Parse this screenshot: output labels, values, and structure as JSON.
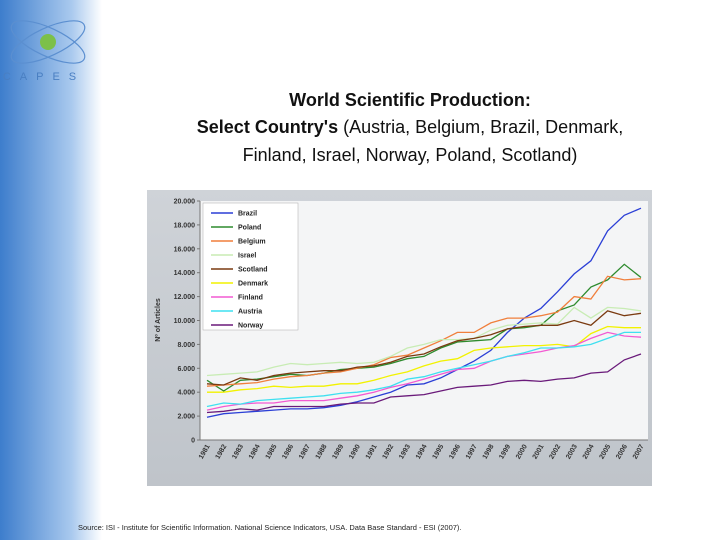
{
  "logo": "CAPES",
  "source": "Source: ISI - Institute for Scientific Information. National Science Indicators, USA. Data Base Standard - ESI (2007).",
  "chart_data": {
    "type": "line",
    "title": [
      "World Scientific Production:",
      "Select Country's",
      "(Austria, Belgium, Brazil, Denmark,",
      "Finland, Israel, Norway, Poland, Scotland)"
    ],
    "y_label": "Nº of Articles",
    "categories": [
      "1981",
      "1982",
      "1983",
      "1984",
      "1985",
      "1986",
      "1987",
      "1988",
      "1989",
      "1990",
      "1991",
      "1992",
      "1993",
      "1994",
      "1995",
      "1996",
      "1997",
      "1998",
      "1999",
      "2000",
      "2001",
      "2002",
      "2003",
      "2004",
      "2005",
      "2006",
      "2007"
    ],
    "ylim": [
      0,
      20000
    ],
    "yticks": [
      0,
      {
        "value": 2000,
        "label": "2.000"
      },
      {
        "value": 4000,
        "label": "4.000"
      },
      {
        "value": 6000,
        "label": "6.000"
      },
      {
        "value": 8000,
        "label": "8.000"
      },
      {
        "value": 10000,
        "label": "10.000"
      },
      {
        "value": 12000,
        "label": "12.000"
      },
      {
        "value": 14000,
        "label": "14.000"
      },
      {
        "value": 16000,
        "label": "16.000"
      },
      {
        "value": 18000,
        "label": "18.000"
      },
      {
        "value": 20000,
        "label": "20.000"
      }
    ],
    "grid": false,
    "legend": "upper left",
    "series": [
      {
        "name": "Brazil",
        "color": "#2b3fd6",
        "values": [
          1900,
          2200,
          2300,
          2400,
          2500,
          2600,
          2600,
          2700,
          2900,
          3200,
          3600,
          4000,
          4600,
          4700,
          5200,
          5900,
          6600,
          7500,
          9000,
          10200,
          11000,
          12400,
          13900,
          15000,
          17500,
          18800,
          19400
        ]
      },
      {
        "name": "Poland",
        "color": "#2e8b2e",
        "values": [
          5000,
          4100,
          5000,
          5100,
          5300,
          5500,
          5400,
          5600,
          5900,
          6000,
          6100,
          6400,
          6800,
          7000,
          7700,
          8200,
          8300,
          8400,
          9300,
          9400,
          9600,
          10800,
          11300,
          12800,
          13400,
          14700,
          13600
        ]
      },
      {
        "name": "Belgium",
        "color": "#f07f3c",
        "values": [
          4500,
          4600,
          4700,
          4800,
          5100,
          5300,
          5400,
          5600,
          5700,
          6000,
          6300,
          6900,
          7100,
          7700,
          8300,
          9000,
          9000,
          9800,
          10200,
          10200,
          10400,
          10700,
          12000,
          11800,
          13700,
          13400,
          13500
        ]
      },
      {
        "name": "Israel",
        "color": "#c8ecb4",
        "values": [
          5400,
          5500,
          5600,
          5700,
          6100,
          6400,
          6300,
          6400,
          6500,
          6400,
          6500,
          7000,
          7700,
          8000,
          8400,
          8400,
          8500,
          9200,
          9600,
          9700,
          9800,
          9700,
          11100,
          10200,
          11100,
          11000,
          10800
        ]
      },
      {
        "name": "Scotland",
        "color": "#7a3a10",
        "values": [
          4700,
          4600,
          5200,
          5000,
          5400,
          5600,
          5700,
          5800,
          5800,
          6100,
          6200,
          6500,
          7000,
          7200,
          7800,
          8300,
          8500,
          8800,
          9300,
          9500,
          9600,
          9600,
          10000,
          9600,
          10800,
          10400,
          10600
        ]
      },
      {
        "name": "Denmark",
        "color": "#f2f200",
        "values": [
          4000,
          4000,
          4200,
          4300,
          4500,
          4400,
          4500,
          4500,
          4700,
          4700,
          5000,
          5400,
          5700,
          6200,
          6600,
          6800,
          7500,
          7700,
          7800,
          7900,
          7900,
          8000,
          7800,
          8900,
          9500,
          9400,
          9400
        ]
      },
      {
        "name": "Finland",
        "color": "#f25ad2",
        "values": [
          2500,
          2800,
          3000,
          3100,
          3100,
          3300,
          3300,
          3300,
          3500,
          3700,
          4000,
          4400,
          4700,
          5100,
          5500,
          5900,
          6000,
          6600,
          7000,
          7200,
          7400,
          7700,
          7900,
          8500,
          9000,
          8700,
          8600
        ]
      },
      {
        "name": "Austria",
        "color": "#3fe0f0",
        "values": [
          2800,
          3100,
          3000,
          3300,
          3400,
          3500,
          3600,
          3700,
          3900,
          4000,
          4200,
          4500,
          5100,
          5300,
          5700,
          6000,
          6300,
          6600,
          7000,
          7300,
          7700,
          7700,
          7800,
          8000,
          8500,
          9000,
          9000
        ]
      },
      {
        "name": "Norway",
        "color": "#6a1a7a",
        "values": [
          2300,
          2400,
          2600,
          2500,
          2800,
          2800,
          2800,
          2800,
          3000,
          3100,
          3100,
          3600,
          3700,
          3800,
          4100,
          4400,
          4500,
          4600,
          4900,
          5000,
          4900,
          5100,
          5200,
          5600,
          5700,
          6700,
          7200
        ]
      }
    ]
  }
}
